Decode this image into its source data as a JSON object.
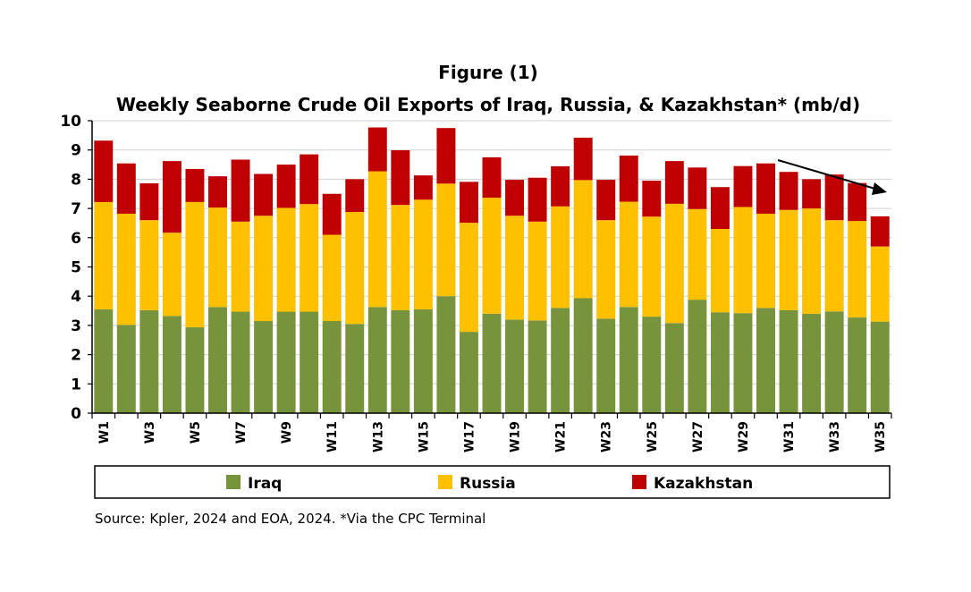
{
  "chart_data": {
    "type": "bar",
    "stacked": true,
    "title": "Figure (1)",
    "subtitle": "Weekly Seaborne Crude Oil Exports of Iraq, Russia, & Kazakhstan* (mb/d)",
    "xlabel": "",
    "ylabel": "",
    "ylim": [
      0,
      10
    ],
    "yticks": [
      0,
      1,
      2,
      3,
      4,
      5,
      6,
      7,
      8,
      9,
      10
    ],
    "grid": true,
    "legend_position": "bottom",
    "categories": [
      "W1",
      "W2",
      "W3",
      "W4",
      "W5",
      "W6",
      "W7",
      "W8",
      "W9",
      "W10",
      "W11",
      "W12",
      "W13",
      "W14",
      "W15",
      "W16",
      "W17",
      "W18",
      "W19",
      "W20",
      "W21",
      "W22",
      "W23",
      "W24",
      "W25",
      "W26",
      "W27",
      "W28",
      "W29",
      "W30",
      "W31",
      "W32",
      "W33",
      "W34",
      "W35"
    ],
    "tick_labels": [
      "W1",
      "",
      "W3",
      "",
      "W5",
      "",
      "W7",
      "",
      "W9",
      "",
      "W11",
      "",
      "W13",
      "",
      "W15",
      "",
      "W17",
      "",
      "W19",
      "",
      "W21",
      "",
      "W23",
      "",
      "W25",
      "",
      "W27",
      "",
      "W29",
      "",
      "W31",
      "",
      "W33",
      "",
      "W35"
    ],
    "series": [
      {
        "name": "Iraq",
        "color": "#77933c",
        "values": [
          3.55,
          3.02,
          3.52,
          3.32,
          2.94,
          3.63,
          3.47,
          3.15,
          3.47,
          3.47,
          3.15,
          3.05,
          3.63,
          3.52,
          3.55,
          4.0,
          2.78,
          3.4,
          3.2,
          3.17,
          3.6,
          3.93,
          3.23,
          3.63,
          3.3,
          3.08,
          3.88,
          3.45,
          3.42,
          3.6,
          3.52,
          3.4,
          3.48,
          3.27,
          3.13
        ]
      },
      {
        "name": "Russia",
        "color": "#ffc000",
        "values": [
          3.67,
          3.8,
          3.08,
          2.85,
          4.28,
          3.4,
          3.08,
          3.6,
          3.55,
          3.68,
          2.95,
          3.83,
          4.64,
          3.6,
          3.75,
          3.85,
          3.73,
          3.97,
          3.55,
          3.38,
          3.47,
          4.04,
          3.37,
          3.6,
          3.42,
          4.08,
          3.1,
          2.85,
          3.63,
          3.22,
          3.43,
          3.6,
          3.12,
          3.3,
          2.57
        ]
      },
      {
        "name": "Kazakhstan",
        "color": "#c00000",
        "values": [
          2.1,
          1.72,
          1.26,
          2.45,
          1.13,
          1.07,
          2.12,
          1.43,
          1.48,
          1.7,
          1.4,
          1.12,
          1.5,
          1.87,
          0.83,
          1.9,
          1.4,
          1.38,
          1.23,
          1.5,
          1.37,
          1.45,
          1.38,
          1.58,
          1.23,
          1.46,
          1.42,
          1.43,
          1.4,
          1.72,
          1.3,
          1.0,
          1.56,
          1.3,
          1.03
        ]
      }
    ],
    "annotations": [
      "downward trend arrow from W30 to W35"
    ]
  },
  "legend": {
    "items": [
      {
        "label": "Iraq",
        "color": "#77933c"
      },
      {
        "label": "Russia",
        "color": "#ffc000"
      },
      {
        "label": "Kazakhstan",
        "color": "#c00000"
      }
    ]
  },
  "source_note": "Source: Kpler, 2024 and EOA, 2024. *Via the CPC Terminal"
}
